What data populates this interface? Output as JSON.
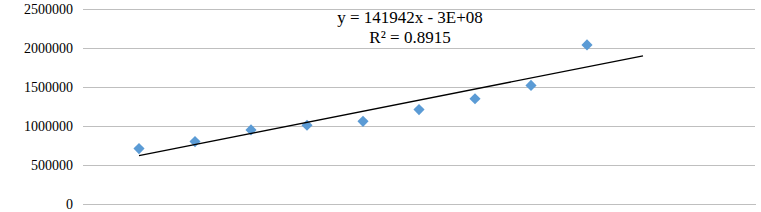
{
  "chart_data": {
    "type": "scatter",
    "annotations": [
      "y = 141942x - 3E+08",
      "R² = 0.8915"
    ],
    "x": [
      1,
      2,
      3,
      4,
      5,
      6,
      7,
      8,
      9
    ],
    "xlim": [
      0,
      12
    ],
    "ylim": [
      0,
      2500000
    ],
    "yticks": [
      0,
      500000,
      1000000,
      1500000,
      2000000,
      2500000
    ],
    "grid": true,
    "tick_labels": "y",
    "series": [
      {
        "type": "scatter",
        "color": "#5b9bd5",
        "marker": "diamond",
        "values": [
          710000,
          800000,
          950000,
          1010000,
          1060000,
          1210000,
          1350000,
          1520000,
          2040000
        ]
      },
      {
        "type": "line",
        "color": "#000000",
        "line_style": "solid",
        "x": [
          1,
          10
        ],
        "values": [
          620000,
          1900000
        ]
      }
    ]
  }
}
